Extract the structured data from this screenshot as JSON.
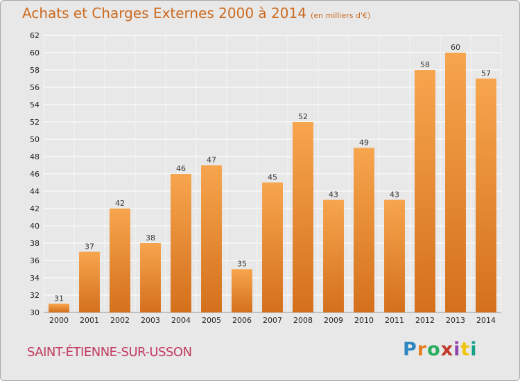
{
  "header": {
    "title": "Achats et Charges Externes 2000 à 2014",
    "unit": "(en milliers d'€)"
  },
  "footer": {
    "commune": "SAINT-ÉTIENNE-SUR-USSON",
    "logo_text": "Proxiti",
    "logo_colors": [
      "#2e86c1",
      "#e67e22",
      "#27ae60",
      "#c0392b",
      "#8e44ad",
      "#f1c40f",
      "#16a085"
    ]
  },
  "colors": {
    "bar_top": "#f7a54e",
    "bar_bottom": "#d4701c",
    "grid": "#ffffff",
    "background": "#e8e8e8",
    "title": "#cc6a1f",
    "commune": "#c23a5f"
  },
  "chart_data": {
    "type": "bar",
    "title": "Achats et Charges Externes 2000 à 2014",
    "subtitle": "(en milliers d'€)",
    "xlabel": "",
    "ylabel": "",
    "categories": [
      "2000",
      "2001",
      "2002",
      "2003",
      "2004",
      "2005",
      "2006",
      "2007",
      "2008",
      "2009",
      "2010",
      "2011",
      "2012",
      "2013",
      "2014"
    ],
    "values": [
      31,
      37,
      42,
      38,
      46,
      47,
      35,
      45,
      52,
      43,
      49,
      43,
      58,
      60,
      57
    ],
    "ylim": [
      30,
      62
    ],
    "yticks": [
      30,
      32,
      34,
      36,
      38,
      40,
      42,
      44,
      46,
      48,
      50,
      52,
      54,
      56,
      58,
      60,
      62
    ],
    "grid": true,
    "data_labels": true
  }
}
